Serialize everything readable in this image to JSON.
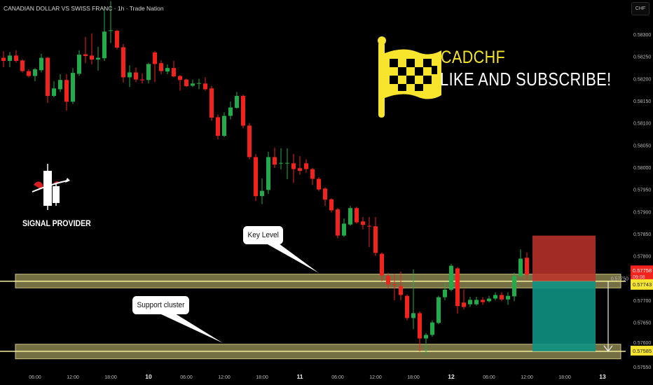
{
  "header": {
    "title": "CANADIAN DOLLAR VS SWISS FRANC · 1h · Trade Nation",
    "currency_button": "CHF"
  },
  "promo": {
    "symbol": "CADCHF",
    "cta": "LIKE AND SUBSCRIBE!",
    "flag_icon": "checkered-flag-icon",
    "color": "#f6e52c"
  },
  "logo": {
    "label": "SIGNAL PROVIDER",
    "icon": "candlestick-arrow-logo"
  },
  "annotations": {
    "key_level": "Key Level",
    "support_cluster": "Support cluster"
  },
  "chart_data": {
    "type": "candlestick",
    "symbol": "CADCHF",
    "timeframe": "1h",
    "colors": {
      "up": "#22ab4a",
      "down": "#f2221c",
      "zone": "#8a8450",
      "zone_line": "#f3ee9c",
      "stop": "#c0322b",
      "target": "#0e9183"
    },
    "ylim": [
      0.5753,
      0.5838
    ],
    "y_ticks": [
      "0.58300",
      "0.58250",
      "0.58200",
      "0.58150",
      "0.58100",
      "0.58050",
      "0.58000",
      "0.57950",
      "0.57900",
      "0.57850",
      "0.57800",
      "0.57750",
      "0.57700",
      "0.57650",
      "0.57600",
      "0.57550"
    ],
    "x_labels": [
      {
        "label": "06:00",
        "candle": 5
      },
      {
        "label": "12:00",
        "candle": 11
      },
      {
        "label": "18:00",
        "candle": 17
      },
      {
        "label": "10",
        "candle": 23,
        "bold": true
      },
      {
        "label": "06:00",
        "candle": 29
      },
      {
        "label": "12:00",
        "candle": 35
      },
      {
        "label": "18:00",
        "candle": 41
      },
      {
        "label": "11",
        "candle": 47,
        "bold": true
      },
      {
        "label": "06:00",
        "candle": 53
      },
      {
        "label": "12:00",
        "candle": 59
      },
      {
        "label": "18:00",
        "candle": 65
      },
      {
        "label": "12",
        "candle": 71,
        "bold": true
      },
      {
        "label": "06:00",
        "candle": 77
      },
      {
        "label": "12:00",
        "candle": 83
      },
      {
        "label": "18:00",
        "candle": 89
      },
      {
        "label": "13",
        "candle": 95,
        "bold": true
      }
    ],
    "candles_ohlc": [
      [
        0.58247,
        0.58262,
        0.58226,
        0.5824
      ],
      [
        0.5824,
        0.5826,
        0.58226,
        0.58252
      ],
      [
        0.58252,
        0.58264,
        0.58236,
        0.5824
      ],
      [
        0.58241,
        0.58244,
        0.58214,
        0.58217
      ],
      [
        0.58217,
        0.58221,
        0.58203,
        0.58206
      ],
      [
        0.58206,
        0.58224,
        0.58194,
        0.58221
      ],
      [
        0.58219,
        0.58256,
        0.58214,
        0.58247
      ],
      [
        0.58247,
        0.58249,
        0.58145,
        0.58161
      ],
      [
        0.58161,
        0.58194,
        0.58158,
        0.58178
      ],
      [
        0.58176,
        0.5821,
        0.5817,
        0.58197
      ],
      [
        0.58197,
        0.5821,
        0.58128,
        0.58148
      ],
      [
        0.58148,
        0.58224,
        0.58143,
        0.58213
      ],
      [
        0.58211,
        0.58264,
        0.58206,
        0.58254
      ],
      [
        0.58255,
        0.58294,
        0.58235,
        0.58251
      ],
      [
        0.58252,
        0.58302,
        0.58232,
        0.58243
      ],
      [
        0.58243,
        0.58272,
        0.58218,
        0.58247
      ],
      [
        0.58246,
        0.58361,
        0.5824,
        0.58306
      ],
      [
        0.58308,
        0.58375,
        0.5828,
        0.58309
      ],
      [
        0.58308,
        0.5831,
        0.58266,
        0.5827
      ],
      [
        0.58271,
        0.58278,
        0.58191,
        0.58203
      ],
      [
        0.58203,
        0.5823,
        0.58181,
        0.58214
      ],
      [
        0.58214,
        0.58225,
        0.58192,
        0.58198
      ],
      [
        0.58198,
        0.58212,
        0.58189,
        0.58197
      ],
      [
        0.58197,
        0.58236,
        0.58189,
        0.58233
      ],
      [
        0.58259,
        0.58262,
        0.58192,
        0.58233
      ],
      [
        0.58235,
        0.58241,
        0.5821,
        0.58217
      ],
      [
        0.58216,
        0.58232,
        0.5821,
        0.58224
      ],
      [
        0.58224,
        0.5824,
        0.58203,
        0.58205
      ],
      [
        0.58206,
        0.58208,
        0.58173,
        0.58197
      ],
      [
        0.58198,
        0.582,
        0.58181,
        0.58183
      ],
      [
        0.58184,
        0.58198,
        0.58181,
        0.58189
      ],
      [
        0.58189,
        0.582,
        0.58176,
        0.5819
      ],
      [
        0.58189,
        0.58203,
        0.58173,
        0.58176
      ],
      [
        0.58178,
        0.58184,
        0.58105,
        0.58112
      ],
      [
        0.58113,
        0.58119,
        0.58063,
        0.58071
      ],
      [
        0.58071,
        0.58124,
        0.58068,
        0.58116
      ],
      [
        0.58116,
        0.58148,
        0.58108,
        0.58135
      ],
      [
        0.58134,
        0.5817,
        0.58132,
        0.58161
      ],
      [
        0.58161,
        0.58164,
        0.58088,
        0.58094
      ],
      [
        0.58094,
        0.581,
        0.58018,
        0.58023
      ],
      [
        0.58023,
        0.5803,
        0.57924,
        0.57935
      ],
      [
        0.57935,
        0.57975,
        0.57917,
        0.57947
      ],
      [
        0.57949,
        0.58035,
        0.5794,
        0.58023
      ],
      [
        0.58023,
        0.58044,
        0.57998,
        0.58006
      ],
      [
        0.58009,
        0.58043,
        0.57995,
        0.5801
      ],
      [
        0.58009,
        0.58043,
        0.57973,
        0.5801
      ],
      [
        0.58009,
        0.5803,
        0.57965,
        0.57996
      ],
      [
        0.57998,
        0.58025,
        0.57983,
        0.57992
      ],
      [
        0.58009,
        0.58018,
        0.57988,
        0.57996
      ],
      [
        0.57996,
        0.57999,
        0.5796,
        0.57974
      ],
      [
        0.57974,
        0.57978,
        0.57946,
        0.5795
      ],
      [
        0.57952,
        0.57955,
        0.57913,
        0.57927
      ],
      [
        0.57928,
        0.5793,
        0.57898,
        0.57903
      ],
      [
        0.57905,
        0.57908,
        0.5784,
        0.57846
      ],
      [
        0.57846,
        0.57885,
        0.57843,
        0.57873
      ],
      [
        0.57871,
        0.57913,
        0.57868,
        0.57908
      ],
      [
        0.57908,
        0.57911,
        0.57873,
        0.57876
      ],
      [
        0.57878,
        0.57888,
        0.5786,
        0.5787
      ],
      [
        0.57868,
        0.57888,
        0.5782,
        0.57867
      ],
      [
        0.57867,
        0.57888,
        0.578,
        0.57807
      ],
      [
        0.57805,
        0.57808,
        0.57743,
        0.57756
      ],
      [
        0.57755,
        0.57762,
        0.57726,
        0.57736
      ],
      [
        0.57736,
        0.5776,
        0.577,
        0.57735
      ],
      [
        0.57732,
        0.57765,
        0.577,
        0.57712
      ],
      [
        0.5771,
        0.57713,
        0.57655,
        0.5766
      ],
      [
        0.5766,
        0.5777,
        0.57635,
        0.57671
      ],
      [
        0.57671,
        0.57675,
        0.57585,
        0.57614
      ],
      [
        0.57614,
        0.57626,
        0.57578,
        0.57622
      ],
      [
        0.57622,
        0.57655,
        0.57618,
        0.5765
      ],
      [
        0.57649,
        0.5771,
        0.57646,
        0.57707
      ],
      [
        0.57707,
        0.57738,
        0.577,
        0.57724
      ],
      [
        0.57724,
        0.57782,
        0.5772,
        0.57778
      ],
      [
        0.57772,
        0.57775,
        0.5767,
        0.57687
      ],
      [
        0.57695,
        0.57725,
        0.5768,
        0.57685
      ],
      [
        0.57691,
        0.57708,
        0.57685,
        0.57701
      ],
      [
        0.57691,
        0.57708,
        0.57688,
        0.57701
      ],
      [
        0.57701,
        0.57707,
        0.5769,
        0.57696
      ],
      [
        0.57698,
        0.5771,
        0.57695,
        0.57704
      ],
      [
        0.57704,
        0.57718,
        0.577,
        0.57712
      ],
      [
        0.57712,
        0.57718,
        0.57698,
        0.57702
      ],
      [
        0.57702,
        0.57718,
        0.5769,
        0.5771
      ],
      [
        0.57709,
        0.57762,
        0.57698,
        0.57755
      ],
      [
        0.57755,
        0.57815,
        0.57752,
        0.57794
      ],
      [
        0.57796,
        0.57808,
        0.57745,
        0.57758
      ]
    ],
    "zones": [
      {
        "name": "key-level",
        "top": 0.57759,
        "bottom": 0.57728,
        "line": 0.57743
      },
      {
        "name": "support-cluster",
        "top": 0.57601,
        "bottom": 0.57568,
        "line": 0.57585
      }
    ],
    "position": {
      "side": "short",
      "entry": 0.57743,
      "stop": 0.57846,
      "target": 0.57585
    },
    "price_labels": {
      "last_price": "0.57758",
      "countdown": "09:08",
      "key_level": "0.57743",
      "target": "0.57585"
    }
  }
}
